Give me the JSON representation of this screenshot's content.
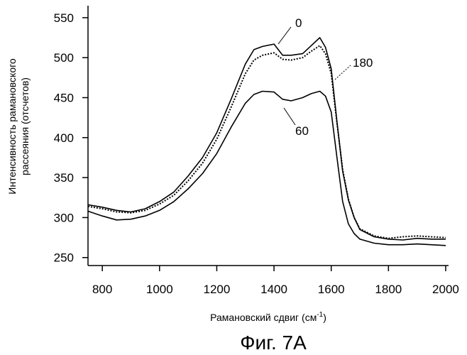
{
  "chart_data": {
    "type": "line",
    "title": "",
    "xlabel": "Рамановский сдвиг (см",
    "xlabel_sup": "-1",
    "xlabel_close": ")",
    "ylabel_lines": [
      "Интенсивность рамановского",
      "рассеяния (отсчетов)"
    ],
    "xlim": [
      750,
      2010
    ],
    "ylim": [
      240,
      565
    ],
    "xticks": [
      800,
      1000,
      1200,
      1400,
      1600,
      1800,
      2000
    ],
    "yticks": [
      250,
      300,
      350,
      400,
      450,
      500,
      550
    ],
    "grid": false,
    "series": [
      {
        "name": "0",
        "style": "solid",
        "x": [
          750,
          800,
          850,
          900,
          950,
          1000,
          1050,
          1100,
          1150,
          1200,
          1250,
          1300,
          1330,
          1360,
          1400,
          1430,
          1460,
          1500,
          1530,
          1560,
          1580,
          1600,
          1620,
          1640,
          1660,
          1680,
          1700,
          1750,
          1800,
          1850,
          1900,
          1950,
          2000
        ],
        "y": [
          316,
          313,
          309,
          307,
          311,
          320,
          332,
          352,
          375,
          406,
          448,
          492,
          510,
          514,
          517,
          503,
          503,
          505,
          515,
          525,
          513,
          486,
          420,
          358,
          322,
          300,
          285,
          276,
          273,
          272,
          274,
          273,
          273
        ]
      },
      {
        "name": "180",
        "style": "dotted",
        "x": [
          750,
          800,
          850,
          900,
          950,
          1000,
          1050,
          1100,
          1150,
          1200,
          1250,
          1300,
          1330,
          1360,
          1400,
          1430,
          1460,
          1500,
          1530,
          1560,
          1580,
          1600,
          1620,
          1640,
          1660,
          1680,
          1700,
          1750,
          1800,
          1850,
          1900,
          1950,
          2000
        ],
        "y": [
          314,
          311,
          307,
          306,
          309,
          317,
          328,
          346,
          368,
          398,
          438,
          480,
          497,
          503,
          506,
          498,
          497,
          500,
          508,
          515,
          505,
          480,
          418,
          360,
          323,
          300,
          286,
          277,
          274,
          276,
          277,
          276,
          275
        ]
      },
      {
        "name": "60",
        "style": "solid",
        "x": [
          750,
          800,
          850,
          900,
          950,
          1000,
          1050,
          1100,
          1150,
          1200,
          1250,
          1300,
          1330,
          1360,
          1400,
          1430,
          1460,
          1500,
          1530,
          1560,
          1580,
          1600,
          1620,
          1640,
          1660,
          1680,
          1700,
          1750,
          1800,
          1850,
          1900,
          1950,
          2000
        ],
        "y": [
          308,
          302,
          297,
          298,
          302,
          309,
          320,
          336,
          355,
          380,
          413,
          443,
          454,
          458,
          457,
          448,
          446,
          450,
          455,
          458,
          452,
          432,
          375,
          320,
          292,
          280,
          273,
          268,
          266,
          266,
          267,
          266,
          265
        ]
      }
    ]
  },
  "caption": "Фиг. 7A"
}
